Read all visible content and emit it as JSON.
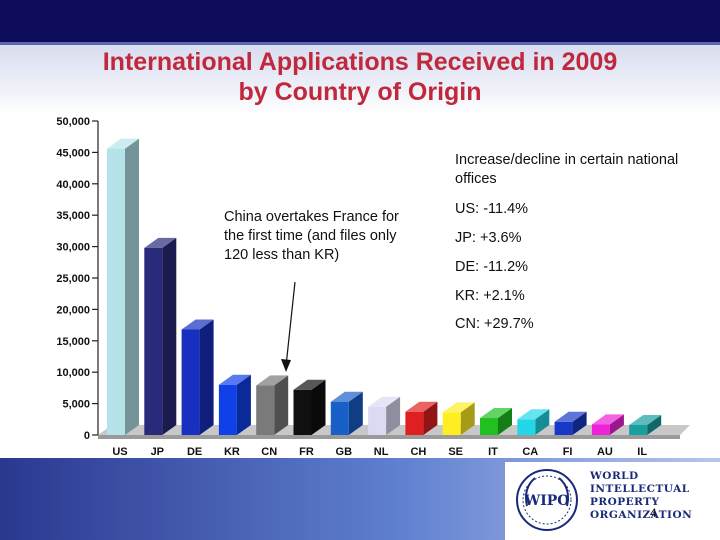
{
  "slide": {
    "title_line1": "International Applications Received in 2009",
    "title_line2": "by Country of Origin",
    "page_number": "4"
  },
  "annotations": {
    "china_note": "China overtakes France for the first time (and files only 120 less than KR)",
    "offices_heading": "Increase/decline in certain national offices",
    "offices": [
      {
        "text": "US: -11.4%"
      },
      {
        "text": "JP: +3.6%"
      },
      {
        "text": "DE: -11.2%"
      },
      {
        "text": "KR: +2.1%"
      },
      {
        "text": "CN: +29.7%"
      }
    ]
  },
  "logo": {
    "emblem_text": "WIPO",
    "line1": "WORLD",
    "line2": "INTELLECTUAL",
    "line3": "PROPERTY",
    "line4": "ORGANIZATION"
  },
  "chart_data": {
    "type": "bar",
    "title": "",
    "xlabel": "",
    "ylabel": "",
    "ylim": [
      0,
      50000
    ],
    "yticks": [
      "0",
      "5,000",
      "10,000",
      "15,000",
      "20,000",
      "25,000",
      "30,000",
      "35,000",
      "40,000",
      "45,000",
      "50,000"
    ],
    "grid": false,
    "categories": [
      "US",
      "JP",
      "DE",
      "KR",
      "CN",
      "FR",
      "GB",
      "NL",
      "CH",
      "SE",
      "IT",
      "CA",
      "FI",
      "AU",
      "IL"
    ],
    "values": [
      45600,
      29800,
      16800,
      8000,
      7900,
      7200,
      5300,
      4500,
      3700,
      3600,
      2700,
      2500,
      2100,
      1700,
      1600
    ],
    "colors": [
      "#b4e4ea",
      "#2a2a7a",
      "#1830c0",
      "#1040e8",
      "#7a7a7a",
      "#101010",
      "#1860c8",
      "#dadaf4",
      "#e02020",
      "#ffee22",
      "#20c020",
      "#22d8e8",
      "#1838c8",
      "#ee22d8",
      "#18a0a0"
    ]
  }
}
